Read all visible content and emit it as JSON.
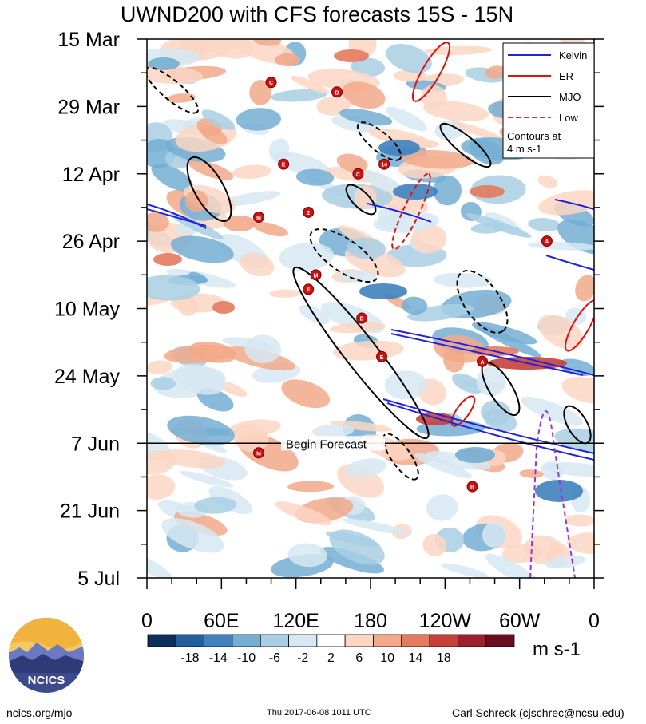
{
  "chart_data": {
    "type": "heatmap",
    "title": "UWND200 with CFS forecasts  15S - 15N",
    "y_ticks": [
      "15 Mar",
      "29 Mar",
      "12 Apr",
      "26 Apr",
      "10 May",
      "24 May",
      "7 Jun",
      "21 Jun",
      "5 Jul"
    ],
    "x_ticks": [
      "0",
      "60E",
      "120E",
      "180",
      "120W",
      "60W",
      "0"
    ],
    "x_range_deg_east": [
      0,
      360
    ],
    "y_range": [
      "15 Mar",
      "5 Jul"
    ],
    "forecast_start": "7 Jun",
    "forecast_label": "Begin Forecast",
    "colorbar": {
      "label": "m s-1",
      "tick_labels": [
        "-18",
        "-14",
        "-10",
        "-6",
        "-2",
        "2",
        "6",
        "10",
        "14",
        "18"
      ],
      "colors": [
        "#0b2f5c",
        "#235f9c",
        "#3f82be",
        "#74aed4",
        "#a9cfe4",
        "#d6e8f2",
        "#ffffff",
        "#fbd6c3",
        "#f2a98a",
        "#e47a5e",
        "#c8403a",
        "#9c1f2c",
        "#6b0d20"
      ]
    },
    "legend": {
      "placement": "top-right",
      "entries": [
        {
          "name": "Kelvin",
          "color": "#2222dd",
          "style": "solid"
        },
        {
          "name": "ER",
          "color": "#dd1111",
          "style": "solid"
        },
        {
          "name": "MJO",
          "color": "#000000",
          "style": "solid"
        },
        {
          "name": "Low",
          "color": "#9933dd",
          "style": "dashed"
        }
      ],
      "note": [
        "Contours at",
        "4 m s-1"
      ]
    },
    "cyclone_markers": [
      {
        "letter": "C",
        "lon": 100,
        "day": 9
      },
      {
        "letter": "D",
        "lon": 153,
        "day": 11
      },
      {
        "letter": "E",
        "lon": 110,
        "day": 26
      },
      {
        "letter": "14",
        "lon": 191,
        "day": 26
      },
      {
        "letter": "C",
        "lon": 170,
        "day": 28
      },
      {
        "letter": "M",
        "lon": 90,
        "day": 37
      },
      {
        "letter": "2",
        "lon": 130,
        "day": 36
      },
      {
        "letter": "A",
        "lon": 322,
        "day": 42
      },
      {
        "letter": "M",
        "lon": 136,
        "day": 49
      },
      {
        "letter": "F",
        "lon": 130,
        "day": 52
      },
      {
        "letter": "D",
        "lon": 173,
        "day": 58
      },
      {
        "letter": "E",
        "lon": 189,
        "day": 66
      },
      {
        "letter": "A",
        "lon": 270,
        "day": 67
      },
      {
        "letter": "M",
        "lon": 90,
        "day": 86
      },
      {
        "letter": "B",
        "lon": 262,
        "day": 93
      }
    ]
  },
  "footer": {
    "left": "ncics.org/mjo",
    "center": "Thu 2017-06-08 1011 UTC",
    "right": "Carl Schreck (cjschrec@ncsu.edu)"
  },
  "logo": {
    "text": "NCICS",
    "colors": [
      "#f2b33d",
      "#3d4a8c"
    ]
  }
}
